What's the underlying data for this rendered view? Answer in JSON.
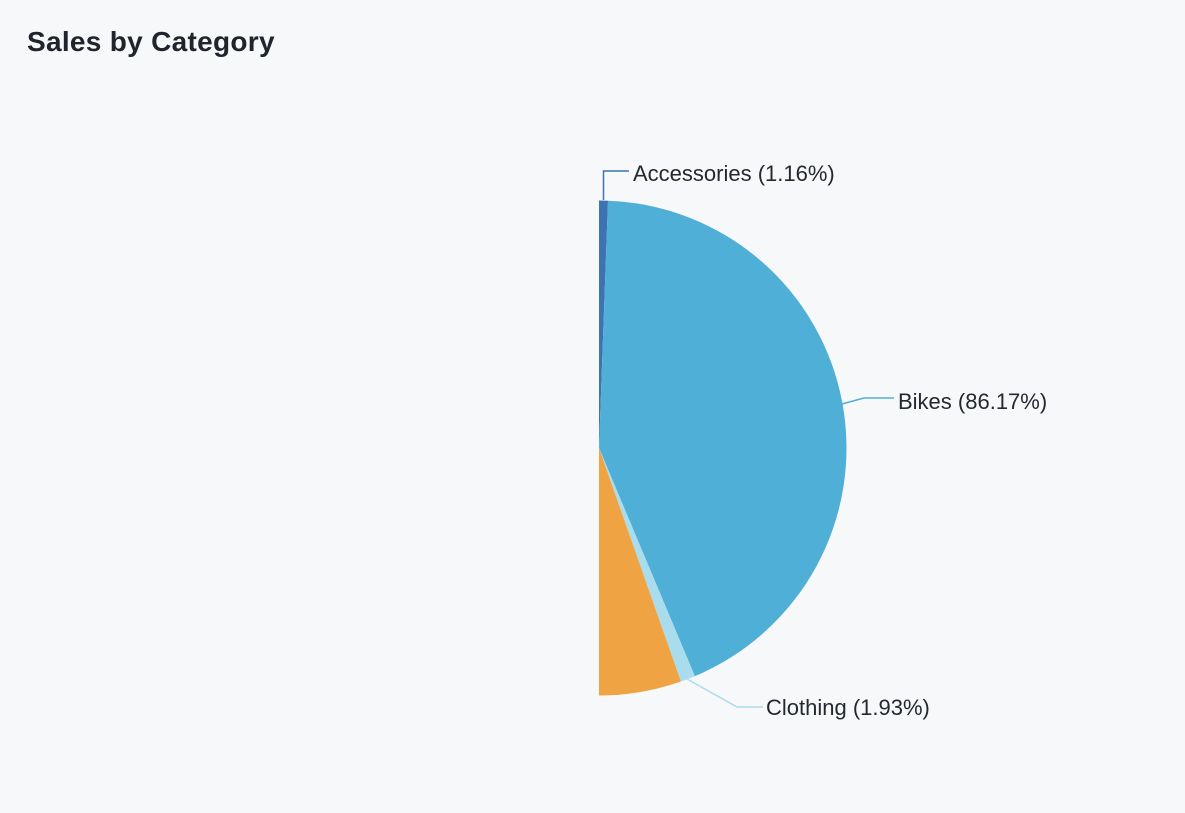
{
  "theme": {
    "background": "#f7f8fa",
    "title_color": "#20242c",
    "label_color": "#24282f"
  },
  "chart_data": {
    "type": "pie",
    "variant": "half-pie",
    "title": "Sales by Category",
    "start_angle_deg": 0,
    "sweep_deg": 180,
    "legend": "none",
    "slices": [
      {
        "name": "Accessories",
        "value": 1.16,
        "unit": "%",
        "color": "#3c73b0",
        "callout": "Accessories (1.16%)"
      },
      {
        "name": "Bikes",
        "value": 86.17,
        "unit": "%",
        "color": "#50afd7",
        "callout": "Bikes (86.17%)"
      },
      {
        "name": "Clothing",
        "value": 1.93,
        "unit": "%",
        "color": "#a9dcec",
        "callout": "Clothing (1.93%)"
      },
      {
        "name": "",
        "value": 10.74,
        "unit": "%",
        "color": "#f0a343",
        "callout": ""
      }
    ]
  }
}
